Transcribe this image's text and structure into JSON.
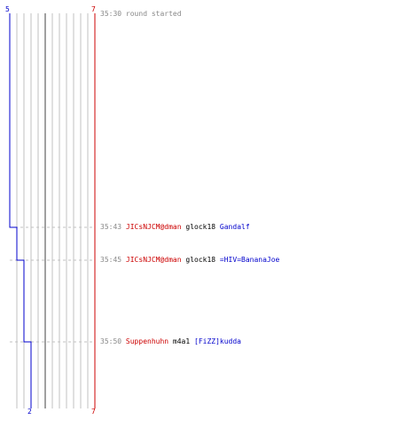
{
  "colors": {
    "team_blue": "#0000cc",
    "team_red": "#cc0000",
    "grid_line": "#c0c0c0",
    "center_line": "#808080",
    "dash_line": "#c0c0c0",
    "text_gray": "#888888",
    "text_black": "#000000"
  },
  "timeline": {
    "blue_start": "5",
    "red_start": "7",
    "blue_end": "2",
    "red_end": "7"
  },
  "events": [
    {
      "time": "35:30",
      "note": "round started"
    },
    {
      "time": "35:43",
      "killer": "JICsNJCM@dman",
      "weapon": "glock18",
      "victim": "Gandalf"
    },
    {
      "time": "35:45",
      "killer": "JICsNJCM@dman",
      "weapon": "glock18",
      "victim": "=HIV=BananaJoe"
    },
    {
      "time": "35:50",
      "killer": "Suppenhuhn",
      "weapon": "m4a1",
      "victim": "[FiZZ]kudda"
    }
  ]
}
